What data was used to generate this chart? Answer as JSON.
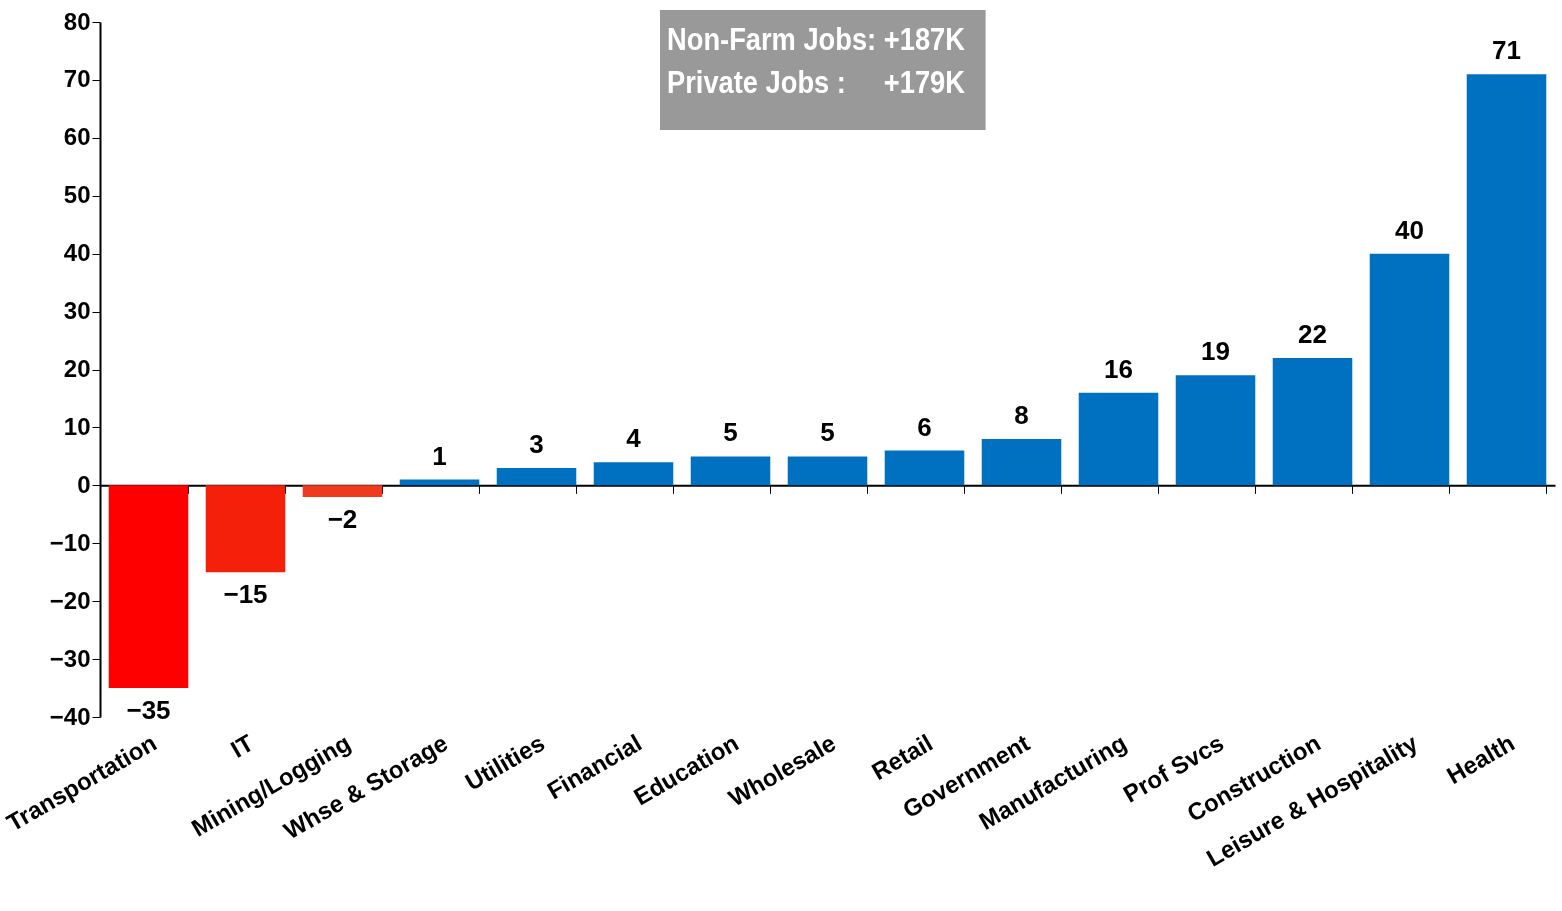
{
  "chart_data": {
    "type": "bar",
    "categories": [
      "Transportation",
      "IT",
      "Mining/Logging",
      "Whse & Storage",
      "Utilities",
      "Financial",
      "Education",
      "Wholesale",
      "Retail",
      "Government",
      "Manufacturing",
      "Prof Svcs",
      "Construction",
      "Leisure & Hospitality",
      "Health"
    ],
    "values": [
      -35,
      -15,
      -2,
      1,
      3,
      4,
      5,
      5,
      6,
      8,
      16,
      19,
      22,
      40,
      71
    ],
    "colors": [
      "#ff0000",
      "#f5200a",
      "#f03a1e",
      "#0070c0",
      "#0070c0",
      "#0070c0",
      "#0070c0",
      "#0070c0",
      "#0070c0",
      "#0070c0",
      "#0070c0",
      "#0070c0",
      "#0070c0",
      "#0070c0",
      "#0070c0"
    ],
    "ylim": [
      -40,
      80
    ],
    "yticks": [
      -40,
      -30,
      -20,
      -10,
      0,
      10,
      20,
      30,
      40,
      50,
      60,
      70,
      80
    ],
    "data_labels": true,
    "annotations": [
      "Non-Farm Jobs: +187K",
      "Private Jobs :     +179K"
    ]
  }
}
